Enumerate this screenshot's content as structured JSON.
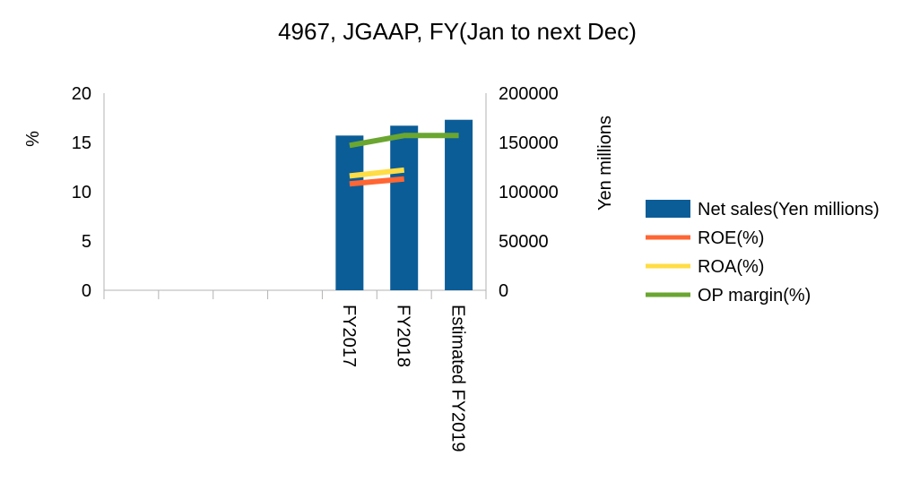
{
  "chart_data": {
    "type": "bar",
    "title": "4967, JGAAP, FY(Jan to next Dec)",
    "categories": [
      "",
      "",
      "",
      "",
      "FY2017",
      "FY2018",
      "Estimated FY2019"
    ],
    "y_left": {
      "label": "%",
      "range": [
        0,
        20
      ],
      "ticks": [
        "0",
        "5",
        "10",
        "15",
        "20"
      ]
    },
    "y_right": {
      "label": "Yen millions",
      "range": [
        0,
        200000
      ],
      "ticks": [
        "0",
        "50000",
        "100000",
        "150000",
        "200000"
      ]
    },
    "grid": false,
    "legend_position": "right",
    "series": [
      {
        "name": "Net sales(Yen millions)",
        "kind": "bar",
        "axis": "right",
        "color": "#0b5d98",
        "values": [
          null,
          null,
          null,
          null,
          157000,
          167000,
          173000
        ]
      },
      {
        "name": "ROE(%)",
        "kind": "line",
        "axis": "left",
        "color": "#ff6633",
        "values": [
          null,
          null,
          null,
          null,
          10.8,
          11.3,
          null
        ]
      },
      {
        "name": "ROA(%)",
        "kind": "line",
        "axis": "left",
        "color": "#ffdd44",
        "values": [
          null,
          null,
          null,
          null,
          11.6,
          12.2,
          null
        ]
      },
      {
        "name": "OP margin(%)",
        "kind": "line",
        "axis": "left",
        "color": "#6aa630",
        "values": [
          null,
          null,
          null,
          null,
          14.7,
          15.7,
          15.7
        ]
      }
    ]
  }
}
